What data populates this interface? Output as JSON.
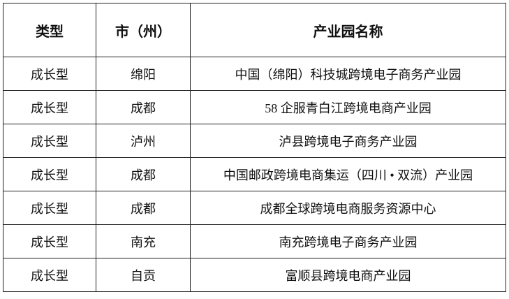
{
  "headers": [
    "类型",
    "市（州）",
    "产业园名称"
  ],
  "rows": [
    [
      "成长型",
      "绵阳",
      "中国（绵阳）科技城跨境电子商务产业园"
    ],
    [
      "成长型",
      "成都",
      "58 企服青白江跨境电商产业园"
    ],
    [
      "成长型",
      "泸州",
      "泸县跨境电子商务产业园"
    ],
    [
      "成长型",
      "成都",
      "中国邮政跨境电商集运（四川 • 双流）产业园"
    ],
    [
      "成长型",
      "成都",
      "成都全球跨境电商服务资源中心"
    ],
    [
      "成长型",
      "南充",
      "南充跨境电子商务产业园"
    ],
    [
      "成长型",
      "自贡",
      "富顺县跨境电商产业园"
    ]
  ]
}
